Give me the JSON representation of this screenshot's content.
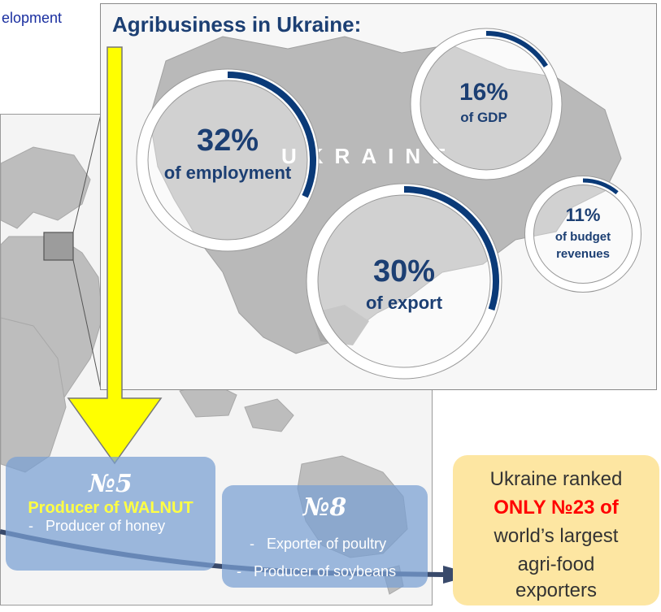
{
  "top_left_text": "elopment",
  "panel": {
    "title": "Agribusiness in Ukraine:",
    "map_label": "UKRAINE"
  },
  "stats": [
    {
      "value": "32%",
      "label": "of employment",
      "fraction": 0.32
    },
    {
      "value": "16%",
      "label": "of GDP",
      "fraction": 0.16
    },
    {
      "value": "11%",
      "label_lines": [
        "of budget",
        "revenues"
      ],
      "fraction": 0.11
    },
    {
      "value": "30%",
      "label": "of export",
      "fraction": 0.3
    }
  ],
  "box_walnut": {
    "rank": "№5",
    "headline": "Producer of WALNUT",
    "items": [
      "Producer of honey"
    ]
  },
  "box_poultry": {
    "rank": "№8",
    "items": [
      "Exporter of poultry",
      "Producer of soybeans"
    ]
  },
  "ranking": {
    "line1": "Ukraine ranked",
    "highlight": "ONLY №23 of",
    "line3": "world’s largest",
    "line4": "agri-food",
    "line5": "exporters"
  },
  "colors": {
    "ring_blue": "#0a3a78",
    "title_blue": "#1c3f73",
    "arrow_yellow": "#ffff00",
    "walnut_yellow": "#ffff44",
    "highlight_red": "#ff0000",
    "box_blue": "#78a0d2",
    "rank_box": "#fde6a2"
  }
}
